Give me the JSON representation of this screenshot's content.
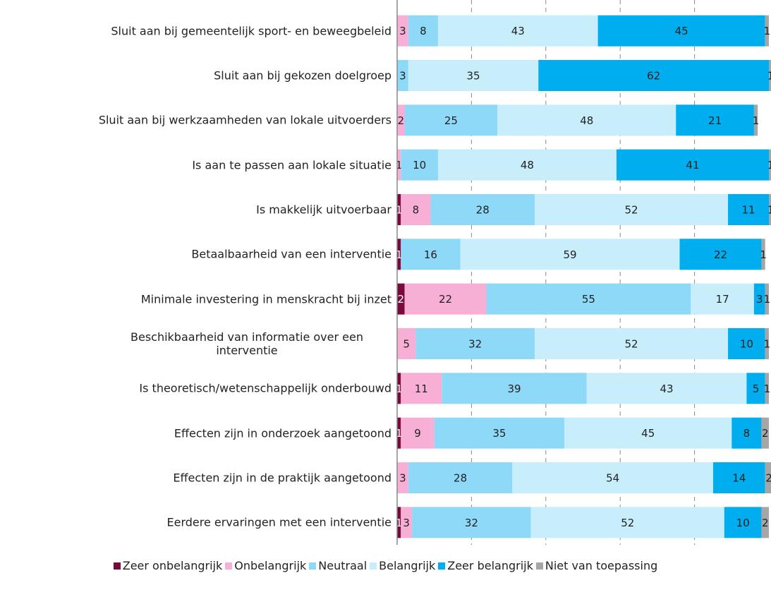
{
  "chart_data": {
    "type": "stacked-bar",
    "orientation": "horizontal",
    "categories": [
      "Sluit aan bij gemeentelijk sport- en beweegbeleid",
      "Sluit aan bij gekozen doelgroep",
      "Sluit aan bij werkzaamheden van lokale uitvoerders",
      "Is aan te passen aan lokale situatie",
      "Is makkelijk uitvoerbaar",
      "Betaalbaarheid van een interventie",
      "Minimale investering in menskracht bij inzet",
      "Beschikbaarheid van informatie over een interventie",
      "Is theoretisch/wetenschappelijk onderbouwd",
      "Effecten zijn in onderzoek aangetoond",
      "Effecten zijn in de praktijk aangetoond",
      "Eerdere ervaringen met een interventie"
    ],
    "series": [
      {
        "name": "Zeer onbelangrijk",
        "color": "#7a0a3c",
        "values": [
          null,
          null,
          null,
          null,
          1,
          1,
          2,
          null,
          1,
          1,
          null,
          1
        ]
      },
      {
        "name": "Onbelangrijk",
        "color": "#f7afd6",
        "values": [
          3,
          null,
          2,
          1,
          8,
          null,
          22,
          5,
          11,
          9,
          3,
          3
        ]
      },
      {
        "name": "Neutraal",
        "color": "#8ed8f8",
        "values": [
          8,
          3,
          25,
          10,
          28,
          16,
          55,
          32,
          39,
          35,
          28,
          32
        ]
      },
      {
        "name": "Belangrijk",
        "color": "#c8eefc",
        "values": [
          43,
          35,
          48,
          48,
          52,
          59,
          17,
          52,
          43,
          45,
          54,
          52
        ]
      },
      {
        "name": "Zeer belangrijk",
        "color": "#00aeef",
        "values": [
          45,
          62,
          21,
          41,
          11,
          22,
          3,
          10,
          5,
          8,
          14,
          10
        ]
      },
      {
        "name": "Niet van toepassing",
        "color": "#a6a6a6",
        "values": [
          1,
          1,
          1,
          1,
          1,
          1,
          1,
          1,
          1,
          2,
          2,
          2
        ]
      }
    ],
    "xlim": [
      0,
      100
    ],
    "xticks": [
      20,
      40,
      60,
      80
    ],
    "grid": true
  }
}
